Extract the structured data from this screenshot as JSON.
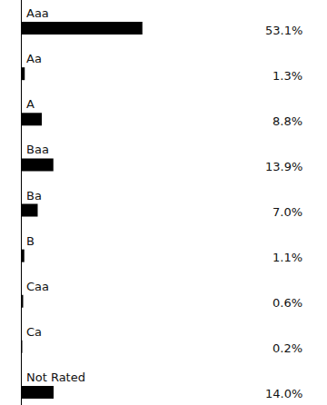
{
  "chart_data": {
    "type": "bar",
    "orientation": "horizontal",
    "categories": [
      "Aaa",
      "Aa",
      "A",
      "Baa",
      "Ba",
      "B",
      "Caa",
      "Ca",
      "Not Rated"
    ],
    "values": [
      53.1,
      1.3,
      8.8,
      13.9,
      7.0,
      1.1,
      0.6,
      0.2,
      14.0
    ],
    "value_labels": [
      "53.1%",
      "1.3%",
      "8.8%",
      "13.9%",
      "7.0%",
      "1.1%",
      "0.6%",
      "0.2%",
      "14.0%"
    ],
    "data_labels": true,
    "color": "#000000",
    "xlim": [
      0,
      100
    ],
    "tick_labels": false,
    "grid": false
  }
}
